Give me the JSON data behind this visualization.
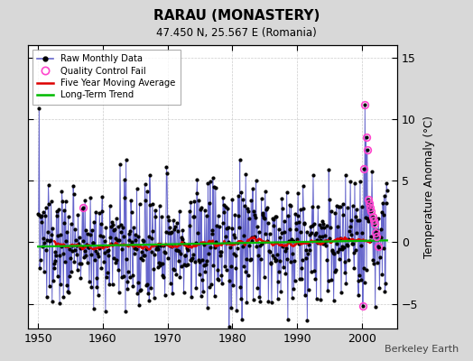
{
  "title": "RARAU (MONASTERY)",
  "subtitle": "47.450 N, 25.567 E (Romania)",
  "ylabel": "Temperature Anomaly (°C)",
  "credit": "Berkeley Earth",
  "xlim": [
    1948.5,
    2005.5
  ],
  "ylim": [
    -7,
    16
  ],
  "yticks": [
    -5,
    0,
    5,
    10,
    15
  ],
  "xticks": [
    1950,
    1960,
    1970,
    1980,
    1990,
    2000
  ],
  "bg_color": "#d8d8d8",
  "plot_bg_color": "#ffffff",
  "raw_line_color": "#6666cc",
  "raw_marker_color": "#000000",
  "qc_marker_color": "#ff44cc",
  "ma_line_color": "#dd0000",
  "trend_line_color": "#00bb00",
  "seed": 137,
  "n_months": 648,
  "start_year": 1950,
  "noise_scale": 2.5,
  "ma_window": 60
}
